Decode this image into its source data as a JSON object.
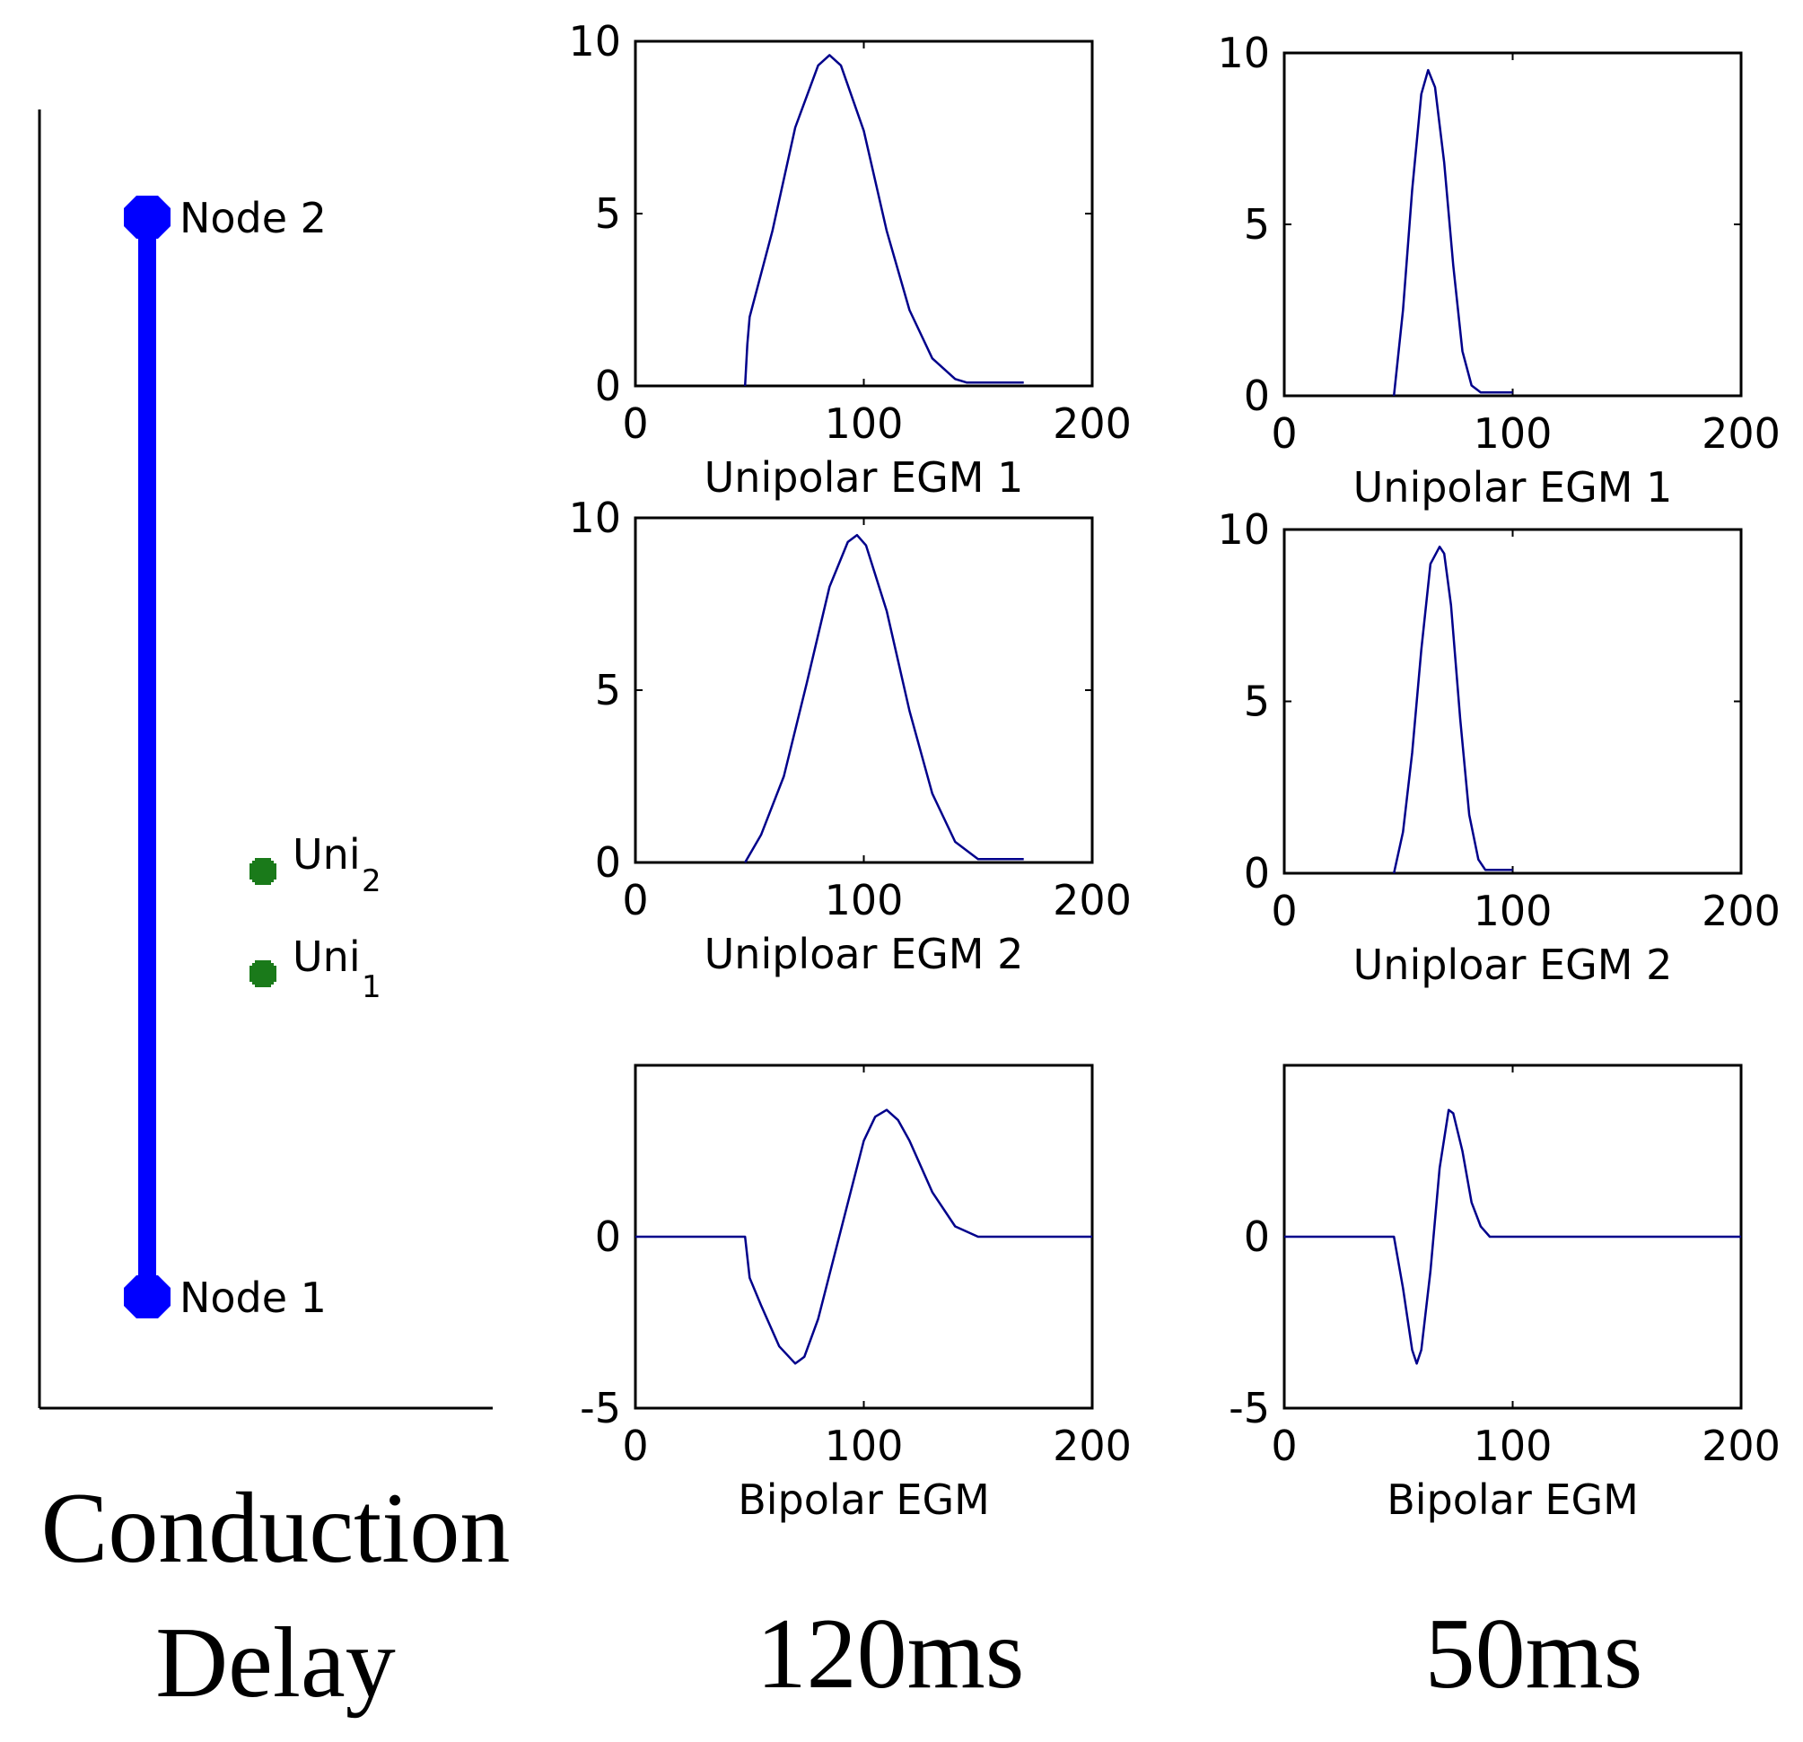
{
  "schematic": {
    "node_top_label": "Node 2",
    "node_bottom_label": "Node 1",
    "electrode_2": {
      "label": "Uni",
      "subscript": "2"
    },
    "electrode_1": {
      "label": "Uni",
      "subscript": "1"
    },
    "wire_color": "#0000ff",
    "electrode_color": "#1a7a1a",
    "caption_line1": "Conduction",
    "caption_line2": "Delay"
  },
  "columns": [
    {
      "label": "120ms"
    },
    {
      "label": "50ms"
    }
  ],
  "chart_data": [
    {
      "type": "line",
      "xlabel": "Unipolar EGM 1",
      "xlim": [
        0,
        200
      ],
      "ylim": [
        0,
        10
      ],
      "xticks": [
        0,
        100,
        200
      ],
      "yticks": [
        0,
        5,
        10
      ],
      "color": "#00008b",
      "series": [
        {
          "x": [
            48,
            49,
            50,
            60,
            70,
            80,
            85,
            90,
            100,
            110,
            120,
            130,
            140,
            145,
            150,
            160,
            170
          ],
          "y": [
            0,
            1.2,
            2,
            4.5,
            7.5,
            9.3,
            9.6,
            9.3,
            7.4,
            4.5,
            2.2,
            0.8,
            0.2,
            0.1,
            0.1,
            0.1,
            0.1
          ]
        }
      ]
    },
    {
      "type": "line",
      "xlabel": "Unipolar EGM 1",
      "xlim": [
        0,
        200
      ],
      "ylim": [
        0,
        10
      ],
      "xticks": [
        0,
        100,
        200
      ],
      "yticks": [
        0,
        5,
        10
      ],
      "color": "#00008b",
      "series": [
        {
          "x": [
            48,
            52,
            56,
            60,
            63,
            66,
            70,
            74,
            78,
            82,
            86,
            90,
            95,
            100
          ],
          "y": [
            0,
            2.5,
            6,
            8.8,
            9.5,
            9,
            6.8,
            3.8,
            1.3,
            0.3,
            0.1,
            0.1,
            0.1,
            0.1
          ]
        }
      ]
    },
    {
      "type": "line",
      "xlabel": "Uniploar EGM 2",
      "xlim": [
        0,
        200
      ],
      "ylim": [
        0,
        10
      ],
      "xticks": [
        0,
        100,
        200
      ],
      "yticks": [
        0,
        5,
        10
      ],
      "color": "#00008b",
      "series": [
        {
          "x": [
            48,
            55,
            65,
            75,
            85,
            93,
            97,
            101,
            110,
            120,
            130,
            140,
            150,
            155,
            160,
            170
          ],
          "y": [
            0,
            0.8,
            2.5,
            5.2,
            8,
            9.3,
            9.5,
            9.2,
            7.3,
            4.4,
            2,
            0.6,
            0.1,
            0.1,
            0.1,
            0.1
          ]
        }
      ]
    },
    {
      "type": "line",
      "xlabel": "Uniploar EGM 2",
      "xlim": [
        0,
        200
      ],
      "ylim": [
        0,
        10
      ],
      "xticks": [
        0,
        100,
        200
      ],
      "yticks": [
        0,
        5,
        10
      ],
      "color": "#00008b",
      "series": [
        {
          "x": [
            48,
            52,
            56,
            60,
            64,
            68,
            70,
            73,
            77,
            81,
            85,
            88,
            92,
            96,
            100
          ],
          "y": [
            0,
            1.2,
            3.5,
            6.5,
            9,
            9.5,
            9.3,
            7.8,
            4.5,
            1.7,
            0.4,
            0.1,
            0.1,
            0.1,
            0.1
          ]
        }
      ]
    },
    {
      "type": "line",
      "xlabel": "Bipolar EGM",
      "xlim": [
        0,
        200
      ],
      "ylim": [
        -5,
        5
      ],
      "xticks": [
        0,
        100,
        200
      ],
      "yticks": [
        -5,
        0
      ],
      "color": "#00008b",
      "series": [
        {
          "x": [
            0,
            48,
            50,
            55,
            63,
            70,
            74,
            80,
            90,
            100,
            105,
            110,
            115,
            120,
            130,
            140,
            150,
            155,
            200
          ],
          "y": [
            0,
            0,
            -1.2,
            -2,
            -3.2,
            -3.7,
            -3.5,
            -2.4,
            0.2,
            2.8,
            3.5,
            3.7,
            3.4,
            2.8,
            1.3,
            0.3,
            0,
            0,
            0
          ]
        }
      ]
    },
    {
      "type": "line",
      "xlabel": "Bipolar EGM",
      "xlim": [
        0,
        200
      ],
      "ylim": [
        -5,
        5
      ],
      "xticks": [
        0,
        100,
        200
      ],
      "yticks": [
        -5,
        0
      ],
      "color": "#00008b",
      "series": [
        {
          "x": [
            0,
            48,
            52,
            56,
            58,
            60,
            64,
            68,
            72,
            74,
            78,
            82,
            86,
            90,
            95,
            200
          ],
          "y": [
            0,
            0,
            -1.5,
            -3.3,
            -3.7,
            -3.3,
            -1,
            2,
            3.7,
            3.6,
            2.5,
            1,
            0.3,
            0,
            0,
            0
          ]
        }
      ]
    }
  ]
}
